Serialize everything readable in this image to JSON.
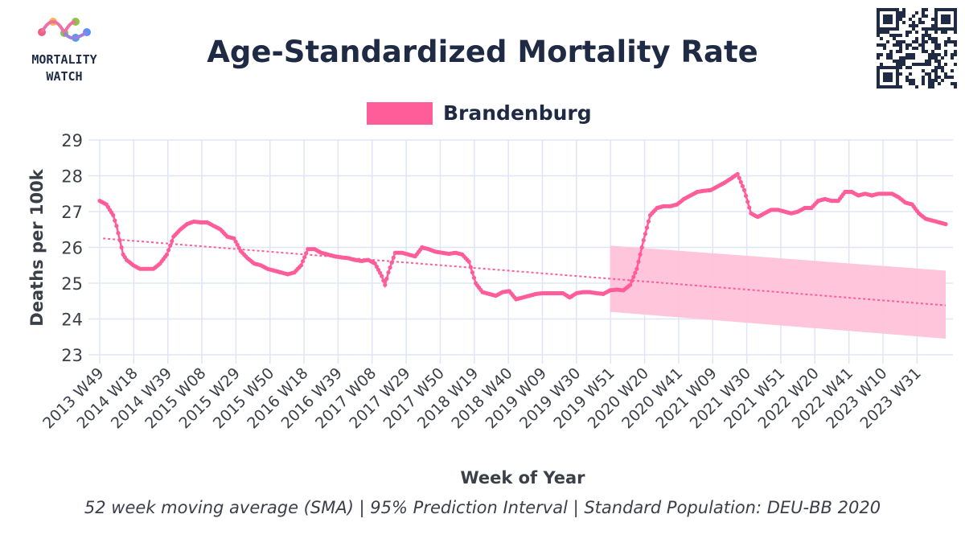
{
  "logo": {
    "line1": "MORTALITY",
    "line2": "WATCH"
  },
  "colors": {
    "series": "#ff5c9a",
    "band": "#ffc2d9",
    "grid": "#dfe5f7",
    "text": "#1f2a44"
  },
  "chart_data": {
    "type": "line",
    "title": "Age-Standardized Mortality Rate",
    "xlabel": "Week of Year",
    "ylabel": "Deaths per 100k",
    "ylim": [
      23,
      29
    ],
    "yticks": [
      23,
      24,
      25,
      26,
      27,
      28,
      29
    ],
    "xtick_labels": [
      "2013 W49",
      "2014 W18",
      "2014 W39",
      "2015 W08",
      "2015 W29",
      "2015 W50",
      "2016 W18",
      "2016 W39",
      "2017 W08",
      "2017 W29",
      "2017 W50",
      "2018 W19",
      "2018 W40",
      "2019 W09",
      "2019 W30",
      "2019 W51",
      "2020 W20",
      "2020 W41",
      "2021 W09",
      "2021 W30",
      "2021 W51",
      "2022 W20",
      "2022 W41",
      "2023 W10",
      "2023 W31"
    ],
    "grid": true,
    "legend_position": "top",
    "footnote": "52 week moving average (SMA) | 95% Prediction Interval | Standard Population: DEU-BB 2020",
    "series": [
      {
        "name": "Brandenburg",
        "keypoints": [
          [
            0,
            27.3
          ],
          [
            1,
            27.2
          ],
          [
            2,
            26.9
          ],
          [
            2.5,
            26.6
          ],
          [
            3,
            26.2
          ],
          [
            3.5,
            25.8
          ],
          [
            4,
            25.65
          ],
          [
            5,
            25.5
          ],
          [
            6,
            25.4
          ],
          [
            7,
            25.4
          ],
          [
            8,
            25.4
          ],
          [
            9,
            25.55
          ],
          [
            10,
            25.8
          ],
          [
            11,
            26.3
          ],
          [
            12,
            26.5
          ],
          [
            13,
            26.65
          ],
          [
            14,
            26.72
          ],
          [
            15,
            26.7
          ],
          [
            16,
            26.7
          ],
          [
            17,
            26.6
          ],
          [
            18,
            26.5
          ],
          [
            19,
            26.3
          ],
          [
            20,
            26.25
          ],
          [
            21,
            25.9
          ],
          [
            22,
            25.7
          ],
          [
            23,
            25.55
          ],
          [
            24,
            25.5
          ],
          [
            25,
            25.4
          ],
          [
            26,
            25.35
          ],
          [
            27,
            25.3
          ],
          [
            28,
            25.25
          ],
          [
            29,
            25.3
          ],
          [
            30,
            25.5
          ],
          [
            31,
            25.95
          ],
          [
            32,
            25.95
          ],
          [
            33,
            25.85
          ],
          [
            34,
            25.8
          ],
          [
            35,
            25.75
          ],
          [
            36,
            25.72
          ],
          [
            37,
            25.7
          ],
          [
            38,
            25.65
          ],
          [
            39,
            25.62
          ],
          [
            40,
            25.65
          ],
          [
            41,
            25.55
          ],
          [
            42,
            25.2
          ],
          [
            42.5,
            24.95
          ],
          [
            43,
            25.3
          ],
          [
            44,
            25.85
          ],
          [
            45,
            25.85
          ],
          [
            46,
            25.8
          ],
          [
            47,
            25.75
          ],
          [
            48,
            26.0
          ],
          [
            49,
            25.95
          ],
          [
            50,
            25.88
          ],
          [
            51,
            25.85
          ],
          [
            52,
            25.82
          ],
          [
            53,
            25.85
          ],
          [
            54,
            25.8
          ],
          [
            55,
            25.6
          ],
          [
            56,
            25.0
          ],
          [
            57,
            24.75
          ],
          [
            58,
            24.7
          ],
          [
            59,
            24.65
          ],
          [
            60,
            24.75
          ],
          [
            61,
            24.78
          ],
          [
            62,
            24.55
          ],
          [
            63,
            24.6
          ],
          [
            64,
            24.65
          ],
          [
            65,
            24.7
          ],
          [
            66,
            24.72
          ],
          [
            67,
            24.72
          ],
          [
            68,
            24.72
          ],
          [
            69,
            24.72
          ],
          [
            70,
            24.6
          ],
          [
            71,
            24.72
          ],
          [
            72,
            24.75
          ],
          [
            73,
            24.75
          ],
          [
            74,
            24.72
          ],
          [
            75,
            24.7
          ],
          [
            76,
            24.8
          ],
          [
            77,
            24.82
          ],
          [
            78,
            24.8
          ],
          [
            79,
            24.95
          ],
          [
            80,
            25.4
          ],
          [
            81,
            26.2
          ],
          [
            82,
            26.9
          ],
          [
            83,
            27.1
          ],
          [
            84,
            27.15
          ],
          [
            85,
            27.15
          ],
          [
            86,
            27.2
          ],
          [
            87,
            27.35
          ],
          [
            88,
            27.45
          ],
          [
            89,
            27.55
          ],
          [
            90,
            27.58
          ],
          [
            91,
            27.6
          ],
          [
            92,
            27.7
          ],
          [
            93,
            27.8
          ],
          [
            94,
            27.92
          ],
          [
            95,
            28.05
          ],
          [
            96,
            27.6
          ],
          [
            97,
            26.95
          ],
          [
            98,
            26.85
          ],
          [
            99,
            26.95
          ],
          [
            100,
            27.05
          ],
          [
            101,
            27.05
          ],
          [
            102,
            27.0
          ],
          [
            103,
            26.95
          ],
          [
            104,
            27.0
          ],
          [
            105,
            27.1
          ],
          [
            106,
            27.1
          ],
          [
            107,
            27.3
          ],
          [
            108,
            27.35
          ],
          [
            109,
            27.3
          ],
          [
            110,
            27.3
          ],
          [
            111,
            27.55
          ],
          [
            112,
            27.55
          ],
          [
            113,
            27.45
          ],
          [
            114,
            27.5
          ],
          [
            115,
            27.45
          ],
          [
            116,
            27.5
          ],
          [
            117,
            27.5
          ],
          [
            118,
            27.5
          ],
          [
            119,
            27.4
          ],
          [
            120,
            27.25
          ],
          [
            121,
            27.2
          ],
          [
            122,
            26.95
          ],
          [
            123,
            26.8
          ],
          [
            124,
            26.75
          ],
          [
            125,
            26.7
          ],
          [
            126,
            26.65
          ]
        ]
      }
    ],
    "trend": {
      "x": [
        0.5,
        126
      ],
      "y": [
        26.25,
        24.38
      ]
    },
    "prediction_interval": {
      "x": [
        76,
        126
      ],
      "lower": [
        24.2,
        23.45
      ],
      "upper": [
        26.05,
        25.35
      ]
    }
  }
}
